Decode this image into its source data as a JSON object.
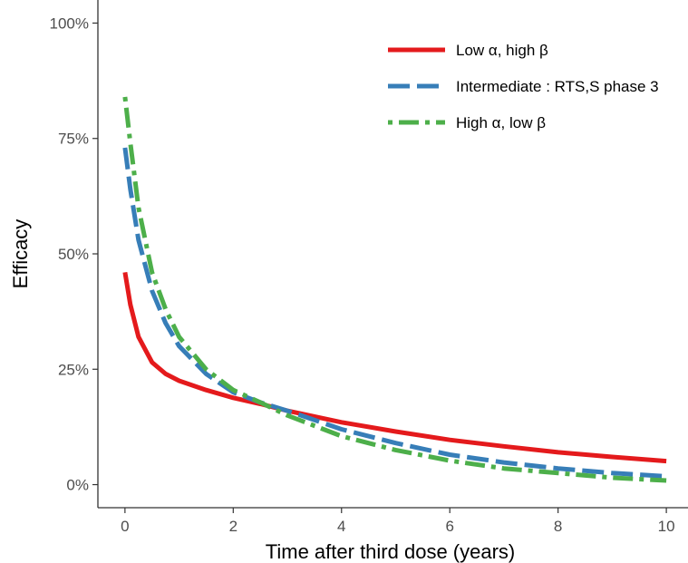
{
  "chart_data": {
    "type": "line",
    "xlabel": "Time after third dose (years)",
    "ylabel": "Efficacy",
    "xlim": [
      -0.5,
      10.4
    ],
    "ylim": [
      -0.05,
      1.05
    ],
    "x_ticks": [
      0,
      2,
      4,
      6,
      8,
      10
    ],
    "x_tick_labels": [
      "0",
      "2",
      "4",
      "6",
      "8",
      "10"
    ],
    "y_ticks": [
      0,
      0.25,
      0.5,
      0.75,
      1.0
    ],
    "y_tick_labels": [
      "0%",
      "25%",
      "50%",
      "75%",
      "100%"
    ],
    "grid": false,
    "legend_position": "top-right",
    "series": [
      {
        "name": "Low α, high β",
        "color": "#e41a1c",
        "dash": "solid",
        "x": [
          0,
          0.1,
          0.25,
          0.5,
          0.75,
          1,
          1.5,
          2,
          2.5,
          3,
          4,
          5,
          6,
          7,
          8,
          9,
          10
        ],
        "y": [
          0.46,
          0.39,
          0.32,
          0.265,
          0.24,
          0.225,
          0.205,
          0.188,
          0.175,
          0.16,
          0.135,
          0.115,
          0.097,
          0.083,
          0.07,
          0.06,
          0.051
        ]
      },
      {
        "name": "Intermediate : RTS,S phase 3",
        "color": "#377eb8",
        "dash": "long-dash",
        "x": [
          0,
          0.1,
          0.25,
          0.5,
          0.75,
          1,
          1.5,
          2,
          2.5,
          3,
          4,
          5,
          6,
          7,
          8,
          9,
          10
        ],
        "y": [
          0.73,
          0.64,
          0.53,
          0.42,
          0.35,
          0.3,
          0.24,
          0.2,
          0.178,
          0.16,
          0.12,
          0.09,
          0.065,
          0.048,
          0.035,
          0.025,
          0.018
        ]
      },
      {
        "name": "High α, low β",
        "color": "#4daf4a",
        "dash": "dot-dash",
        "x": [
          0,
          0.1,
          0.25,
          0.5,
          0.75,
          1,
          1.5,
          2,
          2.5,
          3,
          4,
          5,
          6,
          7,
          8,
          9,
          10
        ],
        "y": [
          0.84,
          0.74,
          0.6,
          0.46,
          0.38,
          0.32,
          0.25,
          0.205,
          0.178,
          0.15,
          0.105,
          0.075,
          0.052,
          0.035,
          0.025,
          0.015,
          0.009
        ]
      }
    ]
  }
}
